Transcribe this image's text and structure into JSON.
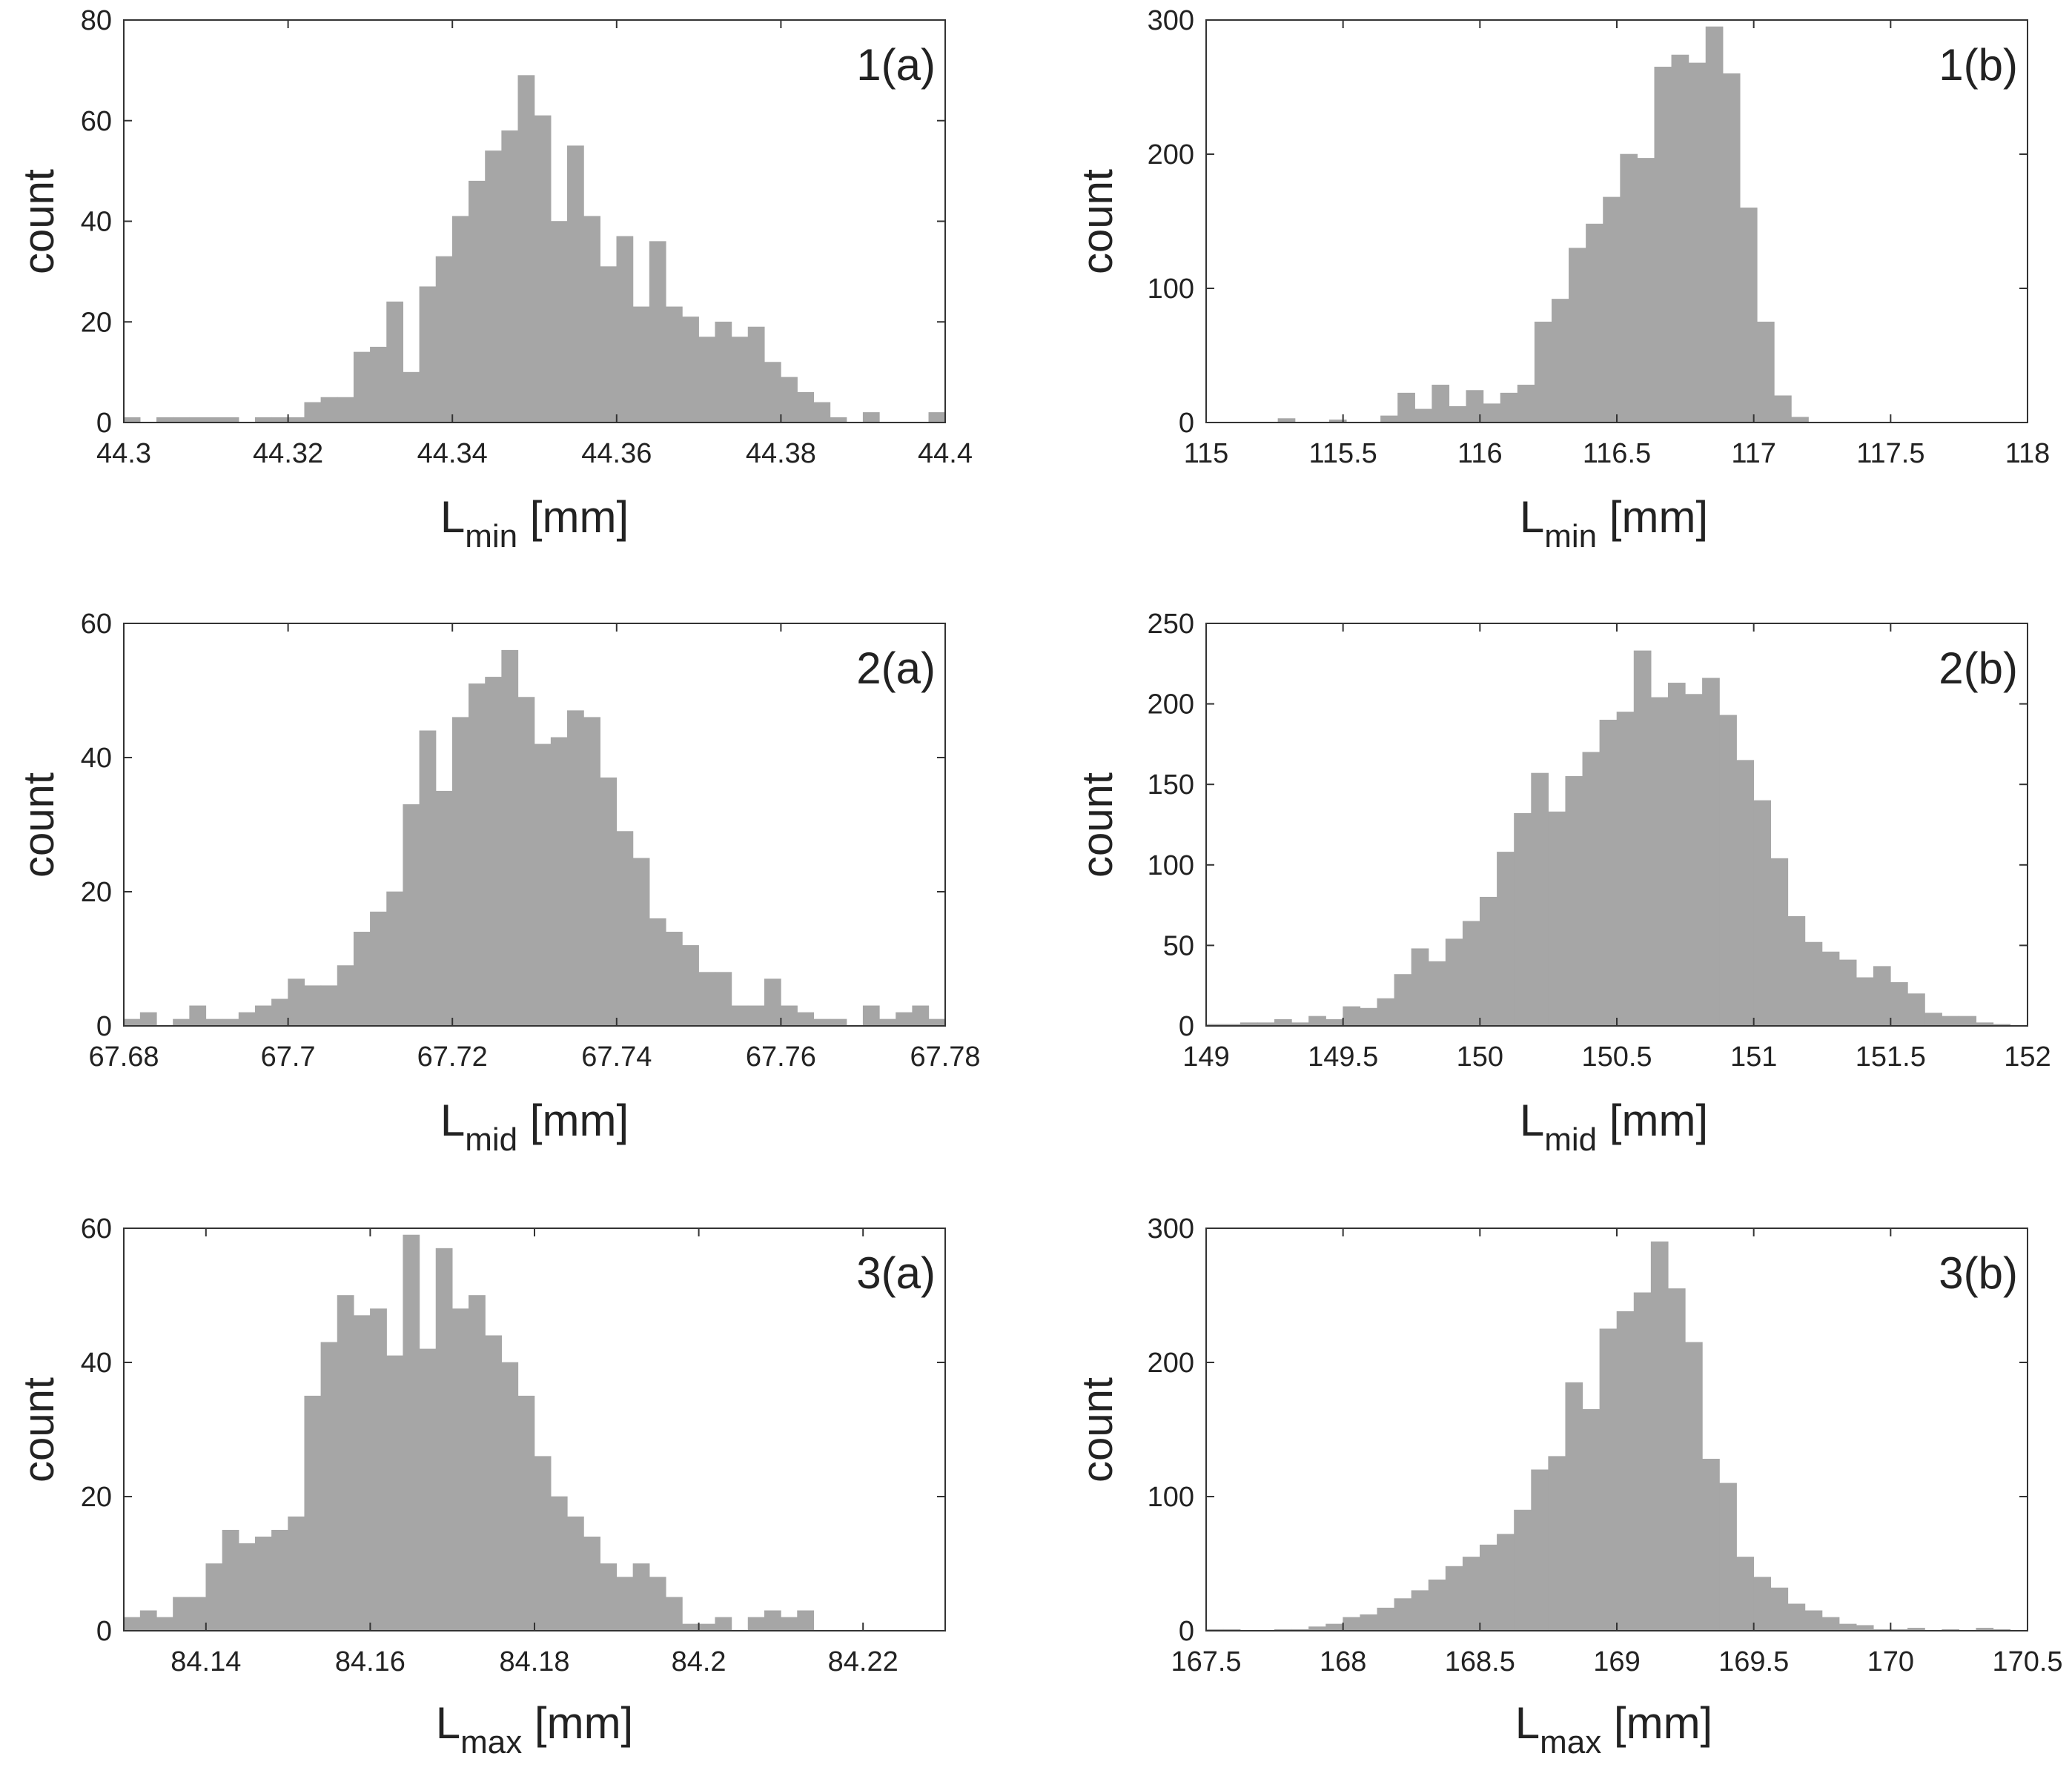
{
  "colors": {
    "bar": "#a6a6a6",
    "axis": "#333333",
    "text": "#222222",
    "background": "#ffffff"
  },
  "chart_data": [
    {
      "type": "bar",
      "panel": "1(a)",
      "ylabel": "count",
      "xlabel_main": "L",
      "xlabel_sub": "min",
      "xlabel_unit": " [mm]",
      "xlim": [
        44.3,
        44.4
      ],
      "ylim": [
        0,
        80
      ],
      "xticks": [
        "44.3",
        "44.32",
        "44.34",
        "44.36",
        "44.38",
        "44.4"
      ],
      "yticks": [
        "0",
        "20",
        "40",
        "60",
        "80"
      ],
      "bin_start": 44.3,
      "bin_width": 0.002,
      "values": [
        1,
        0,
        1,
        1,
        1,
        1,
        1,
        0,
        1,
        1,
        1,
        4,
        5,
        5,
        14,
        15,
        24,
        10,
        27,
        33,
        41,
        48,
        54,
        58,
        69,
        61,
        40,
        55,
        41,
        31,
        37,
        23,
        36,
        23,
        21,
        17,
        20,
        17,
        19,
        12,
        9,
        6,
        4,
        1,
        0,
        2,
        0,
        0,
        0,
        2,
        0
      ]
    },
    {
      "type": "bar",
      "panel": "1(b)",
      "ylabel": "count",
      "xlabel_main": "L",
      "xlabel_sub": "min",
      "xlabel_unit": " [mm]",
      "xlim": [
        115,
        118
      ],
      "ylim": [
        0,
        300
      ],
      "xticks": [
        "115",
        "115.5",
        "116",
        "116.5",
        "117",
        "117.5",
        "118"
      ],
      "yticks": [
        "0",
        "100",
        "200",
        "300"
      ],
      "bin_start": 115.2,
      "bin_width": 0.0625,
      "values": [
        0,
        3,
        0,
        0,
        2,
        0,
        0,
        5,
        22,
        10,
        28,
        12,
        24,
        14,
        22,
        28,
        75,
        92,
        130,
        148,
        168,
        200,
        197,
        265,
        274,
        268,
        295,
        260,
        160,
        75,
        20,
        4,
        0
      ]
    },
    {
      "type": "bar",
      "panel": "2(a)",
      "ylabel": "count",
      "xlabel_main": "L",
      "xlabel_sub": "mid",
      "xlabel_unit": " [mm]",
      "xlim": [
        67.68,
        67.78
      ],
      "ylim": [
        0,
        60
      ],
      "xticks": [
        "67.68",
        "67.7",
        "67.72",
        "67.74",
        "67.76",
        "67.78"
      ],
      "yticks": [
        "0",
        "20",
        "40",
        "60"
      ],
      "bin_start": 67.68,
      "bin_width": 0.002,
      "values": [
        1,
        2,
        0,
        1,
        3,
        1,
        1,
        2,
        3,
        4,
        7,
        6,
        6,
        9,
        14,
        17,
        20,
        33,
        44,
        35,
        46,
        51,
        52,
        56,
        49,
        42,
        43,
        47,
        46,
        37,
        29,
        25,
        16,
        14,
        12,
        8,
        8,
        3,
        3,
        7,
        3,
        2,
        1,
        1,
        0,
        3,
        1,
        2,
        3,
        1,
        0
      ]
    },
    {
      "type": "bar",
      "panel": "2(b)",
      "ylabel": "count",
      "xlabel_main": "L",
      "xlabel_sub": "mid",
      "xlabel_unit": " [mm]",
      "xlim": [
        149,
        152
      ],
      "ylim": [
        0,
        250
      ],
      "xticks": [
        "149",
        "149.5",
        "150",
        "150.5",
        "151",
        "151.5",
        "152"
      ],
      "yticks": [
        "0",
        "50",
        "100",
        "150",
        "200",
        "250"
      ],
      "bin_start": 149,
      "bin_width": 0.0625,
      "values": [
        1,
        1,
        2,
        2,
        4,
        2,
        6,
        4,
        12,
        11,
        17,
        32,
        48,
        40,
        54,
        65,
        80,
        108,
        132,
        157,
        133,
        155,
        170,
        190,
        195,
        233,
        204,
        213,
        206,
        216,
        193,
        165,
        140,
        104,
        68,
        52,
        46,
        41,
        30,
        37,
        27,
        20,
        8,
        6,
        6,
        2,
        1,
        0
      ]
    },
    {
      "type": "bar",
      "panel": "3(a)",
      "ylabel": "count",
      "xlabel_main": "L",
      "xlabel_sub": "max",
      "xlabel_unit": " [mm]",
      "xlim": [
        84.13,
        84.23
      ],
      "ylim": [
        0,
        60
      ],
      "xticks": [
        "84.14",
        "84.16",
        "84.18",
        "84.2",
        "84.22"
      ],
      "yticks": [
        "0",
        "20",
        "40",
        "60"
      ],
      "bin_start": 84.13,
      "bin_width": 0.002,
      "values": [
        2,
        3,
        2,
        5,
        5,
        10,
        15,
        13,
        14,
        15,
        17,
        35,
        43,
        50,
        47,
        48,
        41,
        59,
        42,
        57,
        48,
        50,
        44,
        40,
        35,
        26,
        20,
        17,
        14,
        10,
        8,
        10,
        8,
        5,
        1,
        1,
        2,
        0,
        2,
        3,
        2,
        3,
        0
      ]
    },
    {
      "type": "bar",
      "panel": "3(b)",
      "ylabel": "count",
      "xlabel_main": "L",
      "xlabel_sub": "max",
      "xlabel_unit": " [mm]",
      "xlim": [
        167.5,
        170.5
      ],
      "ylim": [
        0,
        300
      ],
      "xticks": [
        "167.5",
        "168",
        "168.5",
        "169",
        "169.5",
        "170",
        "170.5"
      ],
      "yticks": [
        "0",
        "100",
        "200",
        "300"
      ],
      "bin_start": 167.5,
      "bin_width": 0.0625,
      "values": [
        1,
        1,
        0,
        0,
        1,
        1,
        3,
        5,
        10,
        12,
        17,
        24,
        30,
        38,
        48,
        55,
        64,
        72,
        90,
        120,
        130,
        185,
        165,
        225,
        238,
        252,
        290,
        255,
        215,
        128,
        110,
        55,
        40,
        32,
        20,
        15,
        10,
        5,
        4,
        1,
        1,
        2,
        0,
        1,
        0,
        2,
        1,
        0
      ]
    }
  ]
}
